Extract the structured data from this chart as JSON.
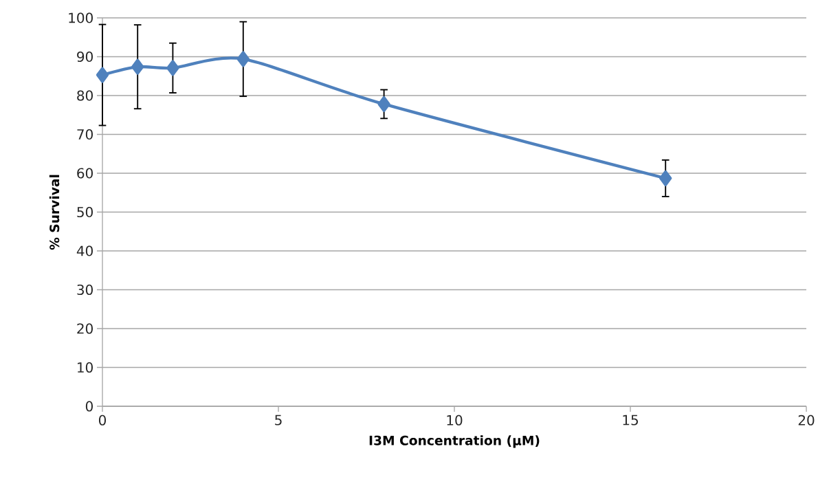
{
  "chart_data": {
    "type": "line",
    "xlabel": "I3M Concentration (µM)",
    "ylabel": "% Survival",
    "x": [
      0,
      1,
      2,
      4,
      8,
      16
    ],
    "series": [
      {
        "color": "#4f81bd",
        "values": [
          85.3,
          87.4,
          87.1,
          89.4,
          77.8,
          58.7
        ],
        "errors": [
          13.0,
          10.8,
          6.4,
          9.6,
          3.7,
          4.7
        ]
      }
    ],
    "xlim": [
      0,
      20
    ],
    "ylim": [
      0,
      100
    ],
    "xticks": [
      0,
      5,
      10,
      15,
      20
    ],
    "yticks": [
      0,
      10,
      20,
      30,
      40,
      50,
      60,
      70,
      80,
      90,
      100
    ],
    "grid": "y",
    "marker": "diamond",
    "line_style": "solid"
  }
}
